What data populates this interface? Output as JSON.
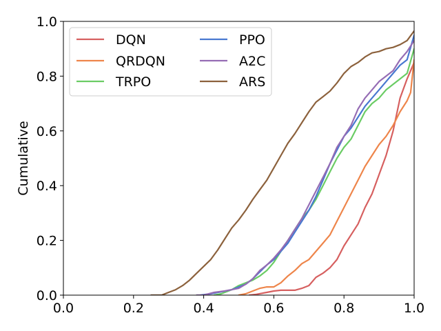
{
  "chart_data": {
    "type": "line",
    "title": "",
    "xlabel": "",
    "ylabel": "Cumulative",
    "xlim": [
      0.0,
      1.0
    ],
    "ylim": [
      0.0,
      1.0
    ],
    "xticks": [
      0.0,
      0.2,
      0.4,
      0.6,
      0.8,
      1.0
    ],
    "yticks": [
      0.0,
      0.2,
      0.4,
      0.6,
      0.8,
      1.0
    ],
    "xtick_labels": [
      "0.0",
      "0.2",
      "0.4",
      "0.6",
      "0.8",
      "1.0"
    ],
    "ytick_labels": [
      "0.0",
      "0.2",
      "0.4",
      "0.6",
      "0.8",
      "1.0"
    ],
    "grid": false,
    "legend": {
      "placement": "top-left",
      "columns": 2
    },
    "series": [
      {
        "name": "DQN",
        "color": "#d65f5f",
        "x": [
          0.53,
          0.55,
          0.58,
          0.6,
          0.62,
          0.64,
          0.66,
          0.68,
          0.7,
          0.72,
          0.74,
          0.76,
          0.78,
          0.8,
          0.82,
          0.84,
          0.86,
          0.88,
          0.9,
          0.92,
          0.94,
          0.96,
          0.98,
          1.0
        ],
        "y": [
          0.0,
          0.003,
          0.01,
          0.015,
          0.018,
          0.018,
          0.018,
          0.025,
          0.035,
          0.065,
          0.08,
          0.1,
          0.13,
          0.18,
          0.22,
          0.26,
          0.32,
          0.37,
          0.44,
          0.51,
          0.6,
          0.72,
          0.79,
          0.85
        ]
      },
      {
        "name": "QRDQN",
        "color": "#ee854a",
        "x": [
          0.5,
          0.52,
          0.54,
          0.56,
          0.58,
          0.6,
          0.62,
          0.64,
          0.66,
          0.68,
          0.7,
          0.72,
          0.74,
          0.76,
          0.78,
          0.8,
          0.82,
          0.84,
          0.86,
          0.88,
          0.9,
          0.92,
          0.94,
          0.96,
          0.98,
          0.99,
          1.0
        ],
        "y": [
          0.0,
          0.005,
          0.015,
          0.025,
          0.03,
          0.03,
          0.045,
          0.07,
          0.09,
          0.115,
          0.13,
          0.16,
          0.19,
          0.22,
          0.27,
          0.32,
          0.37,
          0.42,
          0.47,
          0.51,
          0.55,
          0.58,
          0.62,
          0.67,
          0.71,
          0.74,
          0.86
        ]
      },
      {
        "name": "TRPO",
        "color": "#6acc64",
        "x": [
          0.43,
          0.45,
          0.48,
          0.5,
          0.52,
          0.54,
          0.56,
          0.58,
          0.6,
          0.62,
          0.64,
          0.66,
          0.68,
          0.7,
          0.72,
          0.74,
          0.76,
          0.78,
          0.8,
          0.82,
          0.84,
          0.86,
          0.88,
          0.9,
          0.92,
          0.94,
          0.96,
          0.98,
          1.0
        ],
        "y": [
          0.0,
          0.005,
          0.02,
          0.035,
          0.045,
          0.055,
          0.07,
          0.09,
          0.12,
          0.16,
          0.2,
          0.24,
          0.28,
          0.31,
          0.35,
          0.4,
          0.45,
          0.5,
          0.54,
          0.57,
          0.62,
          0.67,
          0.7,
          0.72,
          0.75,
          0.77,
          0.79,
          0.81,
          0.9
        ]
      },
      {
        "name": "PPO",
        "color": "#4878d0",
        "x": [
          0.39,
          0.42,
          0.45,
          0.48,
          0.5,
          0.52,
          0.54,
          0.56,
          0.58,
          0.6,
          0.62,
          0.64,
          0.66,
          0.68,
          0.7,
          0.72,
          0.74,
          0.76,
          0.78,
          0.8,
          0.82,
          0.84,
          0.86,
          0.88,
          0.9,
          0.92,
          0.94,
          0.96,
          0.98,
          1.0
        ],
        "y": [
          0.0,
          0.005,
          0.012,
          0.02,
          0.03,
          0.04,
          0.06,
          0.085,
          0.11,
          0.13,
          0.16,
          0.19,
          0.23,
          0.27,
          0.31,
          0.36,
          0.42,
          0.48,
          0.53,
          0.58,
          0.61,
          0.65,
          0.69,
          0.72,
          0.75,
          0.78,
          0.81,
          0.84,
          0.86,
          0.95
        ]
      },
      {
        "name": "A2C",
        "color": "#956cb4",
        "x": [
          0.38,
          0.4,
          0.43,
          0.46,
          0.48,
          0.5,
          0.52,
          0.54,
          0.56,
          0.58,
          0.6,
          0.62,
          0.64,
          0.66,
          0.68,
          0.7,
          0.72,
          0.74,
          0.76,
          0.78,
          0.8,
          0.82,
          0.84,
          0.86,
          0.88,
          0.9,
          0.92,
          0.94,
          0.96,
          0.98,
          1.0
        ],
        "y": [
          0.0,
          0.0,
          0.01,
          0.015,
          0.02,
          0.025,
          0.04,
          0.06,
          0.09,
          0.11,
          0.135,
          0.165,
          0.2,
          0.24,
          0.28,
          0.33,
          0.38,
          0.43,
          0.48,
          0.54,
          0.58,
          0.62,
          0.68,
          0.72,
          0.75,
          0.78,
          0.8,
          0.82,
          0.86,
          0.89,
          0.93
        ]
      },
      {
        "name": "ARS",
        "color": "#8c613c",
        "x": [
          0.25,
          0.28,
          0.3,
          0.32,
          0.34,
          0.36,
          0.38,
          0.4,
          0.42,
          0.44,
          0.46,
          0.48,
          0.5,
          0.52,
          0.54,
          0.56,
          0.58,
          0.6,
          0.62,
          0.64,
          0.66,
          0.68,
          0.7,
          0.72,
          0.74,
          0.76,
          0.78,
          0.8,
          0.82,
          0.84,
          0.86,
          0.88,
          0.9,
          0.92,
          0.94,
          0.96,
          0.98,
          1.0
        ],
        "y": [
          0.0,
          0.0,
          0.01,
          0.02,
          0.035,
          0.055,
          0.08,
          0.105,
          0.13,
          0.165,
          0.205,
          0.245,
          0.275,
          0.31,
          0.35,
          0.385,
          0.42,
          0.465,
          0.51,
          0.555,
          0.59,
          0.63,
          0.67,
          0.705,
          0.725,
          0.745,
          0.775,
          0.81,
          0.835,
          0.85,
          0.87,
          0.885,
          0.89,
          0.9,
          0.905,
          0.915,
          0.93,
          0.965
        ]
      }
    ]
  }
}
